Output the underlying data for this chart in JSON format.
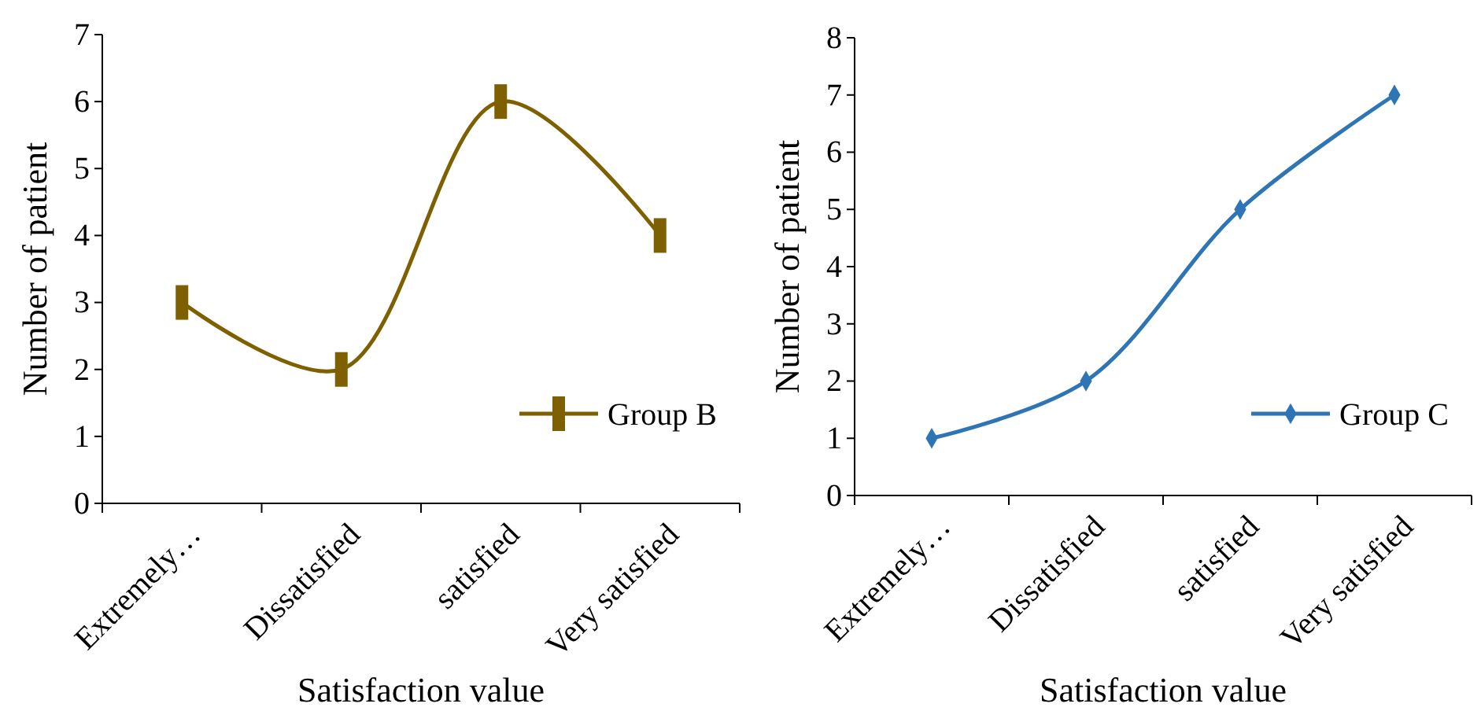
{
  "chart_data": [
    {
      "type": "line",
      "xlabel": "Satisfaction value",
      "ylabel": "Number of patient",
      "categories": [
        "Extremely…",
        "Dissatisfied",
        "satisfied",
        "Very satisfied"
      ],
      "series": [
        {
          "name": "Group B",
          "color": "#7f6000",
          "values": [
            3,
            2,
            6,
            4
          ]
        }
      ],
      "ylim": [
        0,
        7
      ],
      "yticks": [
        0,
        1,
        2,
        3,
        4,
        5,
        6,
        7
      ],
      "marker": "square",
      "legend": "right",
      "grid": false
    },
    {
      "type": "line",
      "xlabel": "Satisfaction value",
      "ylabel": "Number of patient",
      "categories": [
        "Extremely…",
        "Dissatisfied",
        "satisfied",
        "Very satisfied"
      ],
      "series": [
        {
          "name": "Group C",
          "color": "#2e75b6",
          "values": [
            1,
            2,
            5,
            7
          ]
        }
      ],
      "ylim": [
        0,
        8
      ],
      "yticks": [
        0,
        1,
        2,
        3,
        4,
        5,
        6,
        7,
        8
      ],
      "marker": "diamond",
      "legend": "right",
      "grid": false
    }
  ]
}
